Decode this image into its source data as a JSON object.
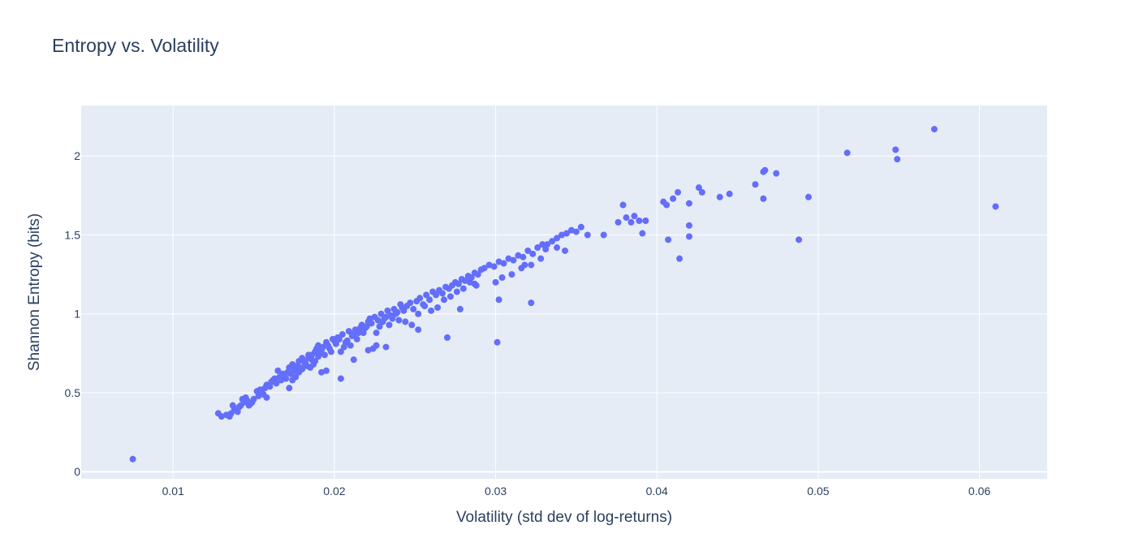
{
  "chart_data": {
    "type": "scatter",
    "title": "Entropy vs. Volatility",
    "xlabel": "Volatility (std dev of log-returns)",
    "ylabel": "Shannon Entropy (bits)",
    "xlim": [
      0.0043,
      0.0642
    ],
    "ylim": [
      -0.045,
      2.32
    ],
    "x_ticks": [
      0.01,
      0.02,
      0.03,
      0.04,
      0.05,
      0.06
    ],
    "x_tick_labels": [
      "0.01",
      "0.02",
      "0.03",
      "0.04",
      "0.05",
      "0.06"
    ],
    "y_ticks": [
      0,
      0.5,
      1,
      1.5,
      2
    ],
    "y_tick_labels": [
      "0",
      "0.5",
      "1",
      "1.5",
      "2"
    ],
    "grid": true,
    "legend": false,
    "colors": {
      "marker": "#636efa",
      "plot_bg": "#e5ecf6",
      "grid": "#ffffff",
      "text": "#2a3f5f"
    },
    "series": [
      {
        "x": [
          0.0075,
          0.0128,
          0.013,
          0.0133,
          0.0136,
          0.0138,
          0.014,
          0.0142,
          0.0144,
          0.0146,
          0.0148,
          0.015,
          0.0135,
          0.0139,
          0.0141,
          0.0143,
          0.0147,
          0.0149,
          0.0137,
          0.0145,
          0.0152,
          0.0154,
          0.0156,
          0.0158,
          0.016,
          0.0162,
          0.0164,
          0.0166,
          0.0168,
          0.017,
          0.0153,
          0.0157,
          0.0161,
          0.0165,
          0.0169,
          0.0155,
          0.0159,
          0.0163,
          0.0167,
          0.0171,
          0.0172,
          0.0174,
          0.0176,
          0.0178,
          0.018,
          0.0182,
          0.0184,
          0.0186,
          0.0188,
          0.019,
          0.0173,
          0.0175,
          0.0177,
          0.0179,
          0.0181,
          0.0183,
          0.0185,
          0.0187,
          0.0189,
          0.0191,
          0.0174,
          0.0178,
          0.0182,
          0.0186,
          0.019,
          0.0176,
          0.018,
          0.0184,
          0.0188,
          0.0192,
          0.0193,
          0.0195,
          0.0197,
          0.0199,
          0.0201,
          0.0194,
          0.0196,
          0.0198,
          0.02,
          0.0202,
          0.0203,
          0.0205,
          0.0207,
          0.0209,
          0.0211,
          0.0213,
          0.0215,
          0.0217,
          0.0219,
          0.0221,
          0.0204,
          0.0206,
          0.0208,
          0.021,
          0.0212,
          0.0214,
          0.0216,
          0.0218,
          0.022,
          0.0222,
          0.0223,
          0.0225,
          0.0227,
          0.0229,
          0.0231,
          0.0233,
          0.0235,
          0.0237,
          0.0239,
          0.0241,
          0.0224,
          0.0226,
          0.0228,
          0.023,
          0.0232,
          0.0234,
          0.0236,
          0.0238,
          0.024,
          0.0242,
          0.0243,
          0.0245,
          0.0247,
          0.0249,
          0.0251,
          0.0253,
          0.0255,
          0.0257,
          0.0259,
          0.0261,
          0.0244,
          0.0248,
          0.0252,
          0.0256,
          0.026,
          0.0263,
          0.0265,
          0.0267,
          0.0269,
          0.0271,
          0.0273,
          0.0275,
          0.0277,
          0.0279,
          0.0281,
          0.0283,
          0.0285,
          0.0287,
          0.0289,
          0.0291,
          0.0264,
          0.0268,
          0.0272,
          0.0276,
          0.028,
          0.0284,
          0.0288,
          0.0293,
          0.0296,
          0.0299,
          0.0302,
          0.0305,
          0.0308,
          0.0311,
          0.0314,
          0.0317,
          0.032,
          0.0323,
          0.0326,
          0.0329,
          0.03,
          0.0304,
          0.031,
          0.0316,
          0.0322,
          0.0328,
          0.0332,
          0.0335,
          0.0338,
          0.0341,
          0.0344,
          0.0347,
          0.035,
          0.0353,
          0.0357,
          0.0367,
          0.0376,
          0.0379,
          0.0381,
          0.0384,
          0.0386,
          0.0389,
          0.0391,
          0.0393,
          0.0404,
          0.0406,
          0.041,
          0.0413,
          0.042,
          0.0426,
          0.0428,
          0.0439,
          0.0445,
          0.0461,
          0.0466,
          0.0467,
          0.0474,
          0.0494,
          0.0407,
          0.0414,
          0.042,
          0.042,
          0.0466,
          0.0488,
          0.0518,
          0.0548,
          0.0549,
          0.0572,
          0.061,
          0.0301,
          0.0302,
          0.0322,
          0.027,
          0.0278,
          0.0232,
          0.0221,
          0.0212,
          0.0192,
          0.0204,
          0.0185,
          0.0172,
          0.0158,
          0.0195,
          0.0226,
          0.0252,
          0.0287,
          0.0318,
          0.0331,
          0.0338,
          0.0343
        ],
        "y": [
          0.08,
          0.37,
          0.35,
          0.36,
          0.37,
          0.4,
          0.38,
          0.42,
          0.44,
          0.45,
          0.43,
          0.46,
          0.35,
          0.39,
          0.41,
          0.46,
          0.42,
          0.44,
          0.42,
          0.47,
          0.51,
          0.52,
          0.49,
          0.55,
          0.54,
          0.58,
          0.56,
          0.6,
          0.62,
          0.59,
          0.48,
          0.53,
          0.57,
          0.64,
          0.61,
          0.5,
          0.55,
          0.59,
          0.58,
          0.63,
          0.66,
          0.68,
          0.64,
          0.7,
          0.72,
          0.69,
          0.74,
          0.71,
          0.76,
          0.73,
          0.62,
          0.65,
          0.67,
          0.66,
          0.7,
          0.67,
          0.73,
          0.68,
          0.78,
          0.75,
          0.58,
          0.63,
          0.68,
          0.74,
          0.8,
          0.6,
          0.65,
          0.72,
          0.7,
          0.77,
          0.79,
          0.82,
          0.78,
          0.84,
          0.81,
          0.74,
          0.8,
          0.76,
          0.83,
          0.85,
          0.84,
          0.87,
          0.82,
          0.89,
          0.86,
          0.9,
          0.88,
          0.93,
          0.91,
          0.95,
          0.76,
          0.79,
          0.83,
          0.8,
          0.87,
          0.84,
          0.91,
          0.88,
          0.92,
          0.97,
          0.94,
          0.98,
          0.96,
          1.0,
          0.97,
          1.02,
          0.99,
          1.03,
          1.01,
          1.06,
          0.78,
          0.88,
          0.92,
          0.95,
          0.98,
          0.93,
          0.97,
          1.0,
          0.96,
          1.04,
          1.02,
          1.05,
          1.07,
          1.03,
          1.08,
          1.1,
          1.06,
          1.12,
          1.09,
          1.14,
          0.95,
          0.93,
          1.0,
          1.05,
          1.02,
          1.12,
          1.15,
          1.13,
          1.17,
          1.16,
          1.18,
          1.2,
          1.19,
          1.22,
          1.21,
          1.24,
          1.23,
          1.26,
          1.25,
          1.28,
          1.04,
          1.09,
          1.11,
          1.14,
          1.16,
          1.2,
          1.18,
          1.29,
          1.31,
          1.3,
          1.33,
          1.32,
          1.35,
          1.34,
          1.37,
          1.36,
          1.4,
          1.38,
          1.42,
          1.44,
          1.2,
          1.23,
          1.25,
          1.29,
          1.31,
          1.35,
          1.44,
          1.46,
          1.48,
          1.5,
          1.51,
          1.53,
          1.52,
          1.55,
          1.5,
          1.5,
          1.58,
          1.69,
          1.61,
          1.58,
          1.62,
          1.59,
          1.51,
          1.59,
          1.71,
          1.69,
          1.73,
          1.77,
          1.7,
          1.8,
          1.77,
          1.74,
          1.76,
          1.82,
          1.73,
          1.91,
          1.89,
          1.74,
          1.47,
          1.35,
          1.56,
          1.49,
          1.9,
          1.47,
          2.02,
          2.04,
          1.98,
          2.17,
          1.68,
          0.82,
          1.09,
          1.07,
          0.85,
          1.03,
          0.79,
          0.77,
          0.71,
          0.63,
          0.59,
          0.66,
          0.53,
          0.47,
          0.64,
          0.8,
          0.9,
          1.19,
          1.31,
          1.41,
          1.42,
          1.4
        ]
      }
    ]
  }
}
